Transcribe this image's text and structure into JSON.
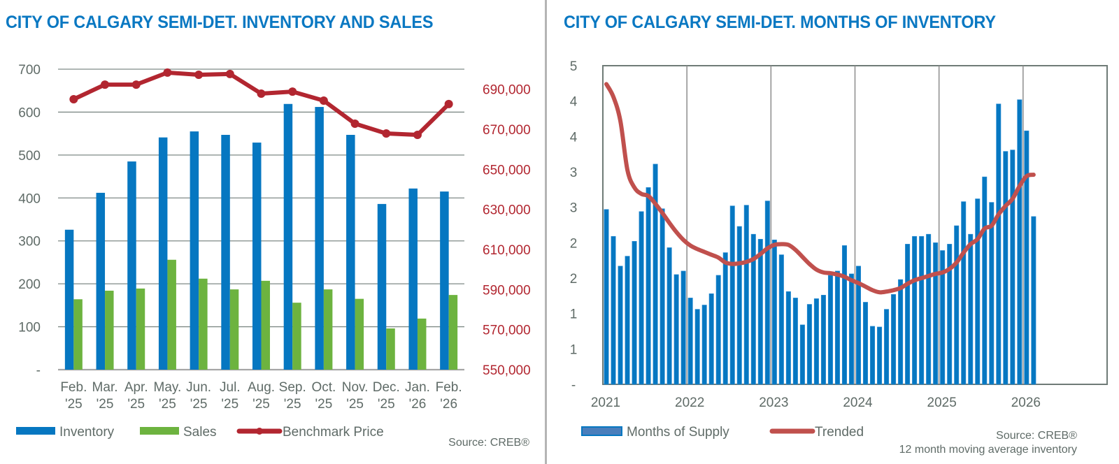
{
  "chart_data": [
    {
      "type": "bar",
      "title": "CITY OF CALGARY SEMI-DET. INVENTORY AND SALES",
      "categories": [
        [
          "Feb.",
          "'25"
        ],
        [
          "Mar.",
          "'25"
        ],
        [
          "Apr.",
          "'25"
        ],
        [
          "May.",
          "'25"
        ],
        [
          "Jun.",
          "'25"
        ],
        [
          "Jul.",
          "'25"
        ],
        [
          "Aug.",
          "'25"
        ],
        [
          "Sep.",
          "'25"
        ],
        [
          "Oct.",
          "'25"
        ],
        [
          "Nov.",
          "'25"
        ],
        [
          "Dec.",
          "'25"
        ],
        [
          "Jan.",
          "'26"
        ],
        [
          "Feb.",
          "'26"
        ]
      ],
      "series": [
        {
          "name": "Inventory",
          "type": "bar",
          "axis": "left",
          "color": "#0677c1",
          "values": [
            326,
            412,
            485,
            541,
            555,
            547,
            529,
            619,
            612,
            547,
            386,
            422,
            415
          ]
        },
        {
          "name": "Sales",
          "type": "bar",
          "axis": "left",
          "color": "#6db33f",
          "values": [
            164,
            184,
            189,
            256,
            212,
            187,
            207,
            156,
            187,
            165,
            96,
            119,
            174
          ]
        },
        {
          "name": "Benchmark Price",
          "type": "line",
          "axis": "right",
          "color": "#b22630",
          "values": [
            685000,
            692300,
            692300,
            698300,
            697200,
            697600,
            687800,
            688800,
            684300,
            672800,
            667900,
            667200,
            682600
          ]
        }
      ],
      "left_axis": {
        "ylim": [
          0,
          700
        ],
        "ticks": [
          0,
          100,
          200,
          300,
          400,
          500,
          600,
          700
        ],
        "tick_labels": [
          "-",
          "100",
          "200",
          "300",
          "400",
          "500",
          "600",
          "700"
        ]
      },
      "right_axis": {
        "ylim": [
          550000,
          700000
        ],
        "ticks": [
          550000,
          570000,
          590000,
          610000,
          630000,
          650000,
          670000,
          690000
        ],
        "tick_labels": [
          "550,000",
          "570,000",
          "590,000",
          "610,000",
          "630,000",
          "650,000",
          "670,000",
          "690,000"
        ]
      },
      "grid": true,
      "legend": {
        "placement": "bottom-left",
        "items": [
          "Inventory",
          "Sales",
          "Benchmark Price"
        ]
      },
      "source": "Source: CREB®"
    },
    {
      "type": "bar",
      "title": "CITY OF CALGARY SEMI-DET. MONTHS OF INVENTORY",
      "x_start": "2021-01",
      "x_tick_labels": [
        "2021",
        "2022",
        "2023",
        "2024",
        "2025",
        "2026"
      ],
      "xlim": [
        2021,
        2027
      ],
      "series": [
        {
          "name": "Months of Supply",
          "type": "bar",
          "color": "#0677c1",
          "values": [
            2.47,
            2.09,
            1.67,
            1.81,
            2.02,
            2.44,
            2.78,
            3.11,
            2.48,
            1.93,
            1.55,
            1.6,
            1.22,
            1.06,
            1.12,
            1.28,
            1.54,
            1.86,
            2.52,
            2.23,
            2.53,
            2.12,
            2.05,
            2.59,
            2.04,
            1.83,
            1.31,
            1.22,
            0.84,
            1.13,
            1.21,
            1.26,
            1.54,
            1.6,
            1.96,
            1.56,
            1.67,
            1.16,
            0.82,
            0.81,
            1.06,
            1.27,
            1.48,
            1.98,
            2.09,
            2.09,
            2.12,
            2.0,
            1.89,
            1.98,
            2.24,
            2.58,
            2.12,
            2.62,
            2.93,
            2.57,
            3.96,
            3.29,
            3.31,
            4.02,
            3.58,
            2.37
          ]
        },
        {
          "name": "Trended",
          "type": "line",
          "color": "#c0504d",
          "values": [
            4.24,
            4.06,
            3.72,
            3.03,
            2.78,
            2.69,
            2.66,
            2.55,
            2.42,
            2.28,
            2.15,
            2.04,
            1.96,
            1.91,
            1.87,
            1.83,
            1.79,
            1.72,
            1.7,
            1.71,
            1.73,
            1.77,
            1.84,
            1.92,
            1.97,
            1.98,
            1.97,
            1.9,
            1.8,
            1.7,
            1.62,
            1.58,
            1.57,
            1.55,
            1.52,
            1.47,
            1.43,
            1.38,
            1.33,
            1.3,
            1.31,
            1.33,
            1.36,
            1.42,
            1.47,
            1.5,
            1.53,
            1.56,
            1.58,
            1.63,
            1.72,
            1.86,
            1.98,
            2.05,
            2.2,
            2.24,
            2.4,
            2.52,
            2.62,
            2.8,
            2.94,
            2.96
          ]
        }
      ],
      "ylim": [
        0,
        4.5
      ],
      "y_ticks": [
        0,
        0.5,
        1,
        1.5,
        2,
        2.5,
        3,
        3.5,
        4,
        4.5
      ],
      "y_tick_labels": [
        "-",
        "1",
        "1",
        "2",
        "2",
        "3",
        "3",
        "4",
        "4",
        "5"
      ],
      "grid": "vertical year lines",
      "legend": {
        "placement": "bottom-left",
        "items": [
          "Months of Supply",
          "Trended"
        ]
      },
      "source": "Source: CREB®",
      "note": "12 month moving average inventory"
    }
  ]
}
